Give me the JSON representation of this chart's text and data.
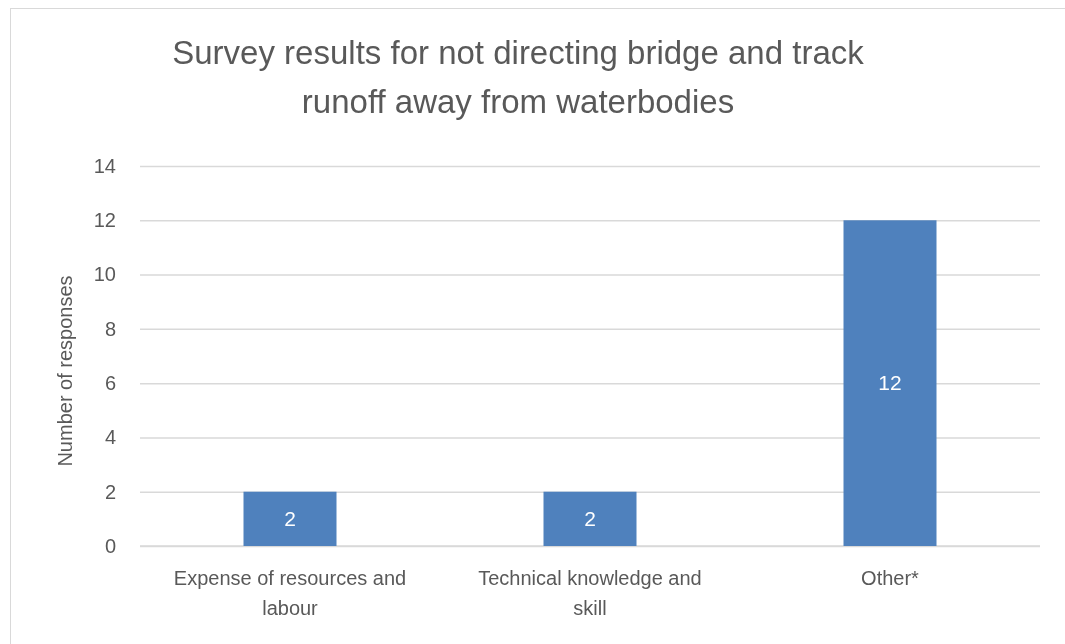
{
  "chart_data": {
    "type": "bar",
    "title": "Survey results for not directing bridge and track runoff away from waterbodies",
    "ylabel": "Number of responses",
    "categories": [
      "Expense of resources and labour",
      "Technical knowledge and skill",
      "Other*"
    ],
    "values": [
      2,
      2,
      12
    ],
    "color": "#4f81bd",
    "ylim": [
      0,
      14
    ],
    "yticks": [
      0,
      2,
      4,
      6,
      8,
      10,
      12,
      14
    ],
    "grid": "y",
    "data_labels": true
  }
}
